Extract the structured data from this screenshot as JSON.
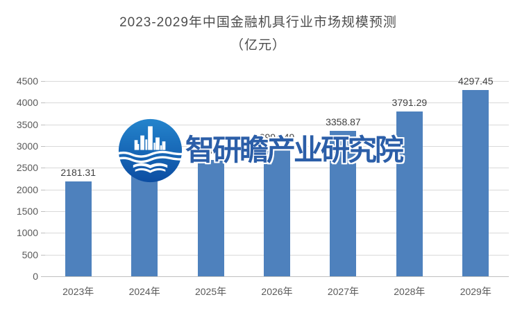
{
  "title": {
    "line1": "2023-2029年中国金融机具行业市场规模预测",
    "line2": "（亿元）"
  },
  "watermark": {
    "text": "智研瞻产业研究院",
    "logo_icon": "zhiyanzhan-circle-logo"
  },
  "colors": {
    "bar": "#4e81bd",
    "gridline": "#d9d9d9",
    "axis_line": "#bfbfbf",
    "axis_text": "#595959",
    "data_label": "#3f3f3f",
    "title_text": "#4d4d4d",
    "watermark_text": "#2b5ea8",
    "logo_blue_top": "#2484cc",
    "logo_blue_bottom": "#0c4da2"
  },
  "chart_data": {
    "type": "bar",
    "title": "2023-2029年中国金融机具行业市场规模预测（亿元）",
    "categories": [
      "2023年",
      "2024年",
      "2025年",
      "2026年",
      "2027年",
      "2028年",
      "2029年"
    ],
    "values": [
      2181.31,
      2425,
      2688.2,
      2994.49,
      3358.87,
      3791.29,
      4297.45
    ],
    "data_labels": [
      "2181.31",
      "",
      "2688.2",
      "2994.49",
      "3358.87",
      "3791.29",
      "4297.45"
    ],
    "ylim": [
      0,
      4500
    ],
    "yticks": [
      0,
      500,
      1000,
      1500,
      2000,
      2500,
      3000,
      3500,
      4000,
      4500
    ],
    "xlabel": "",
    "ylabel": "",
    "grid": true,
    "legend": false
  }
}
